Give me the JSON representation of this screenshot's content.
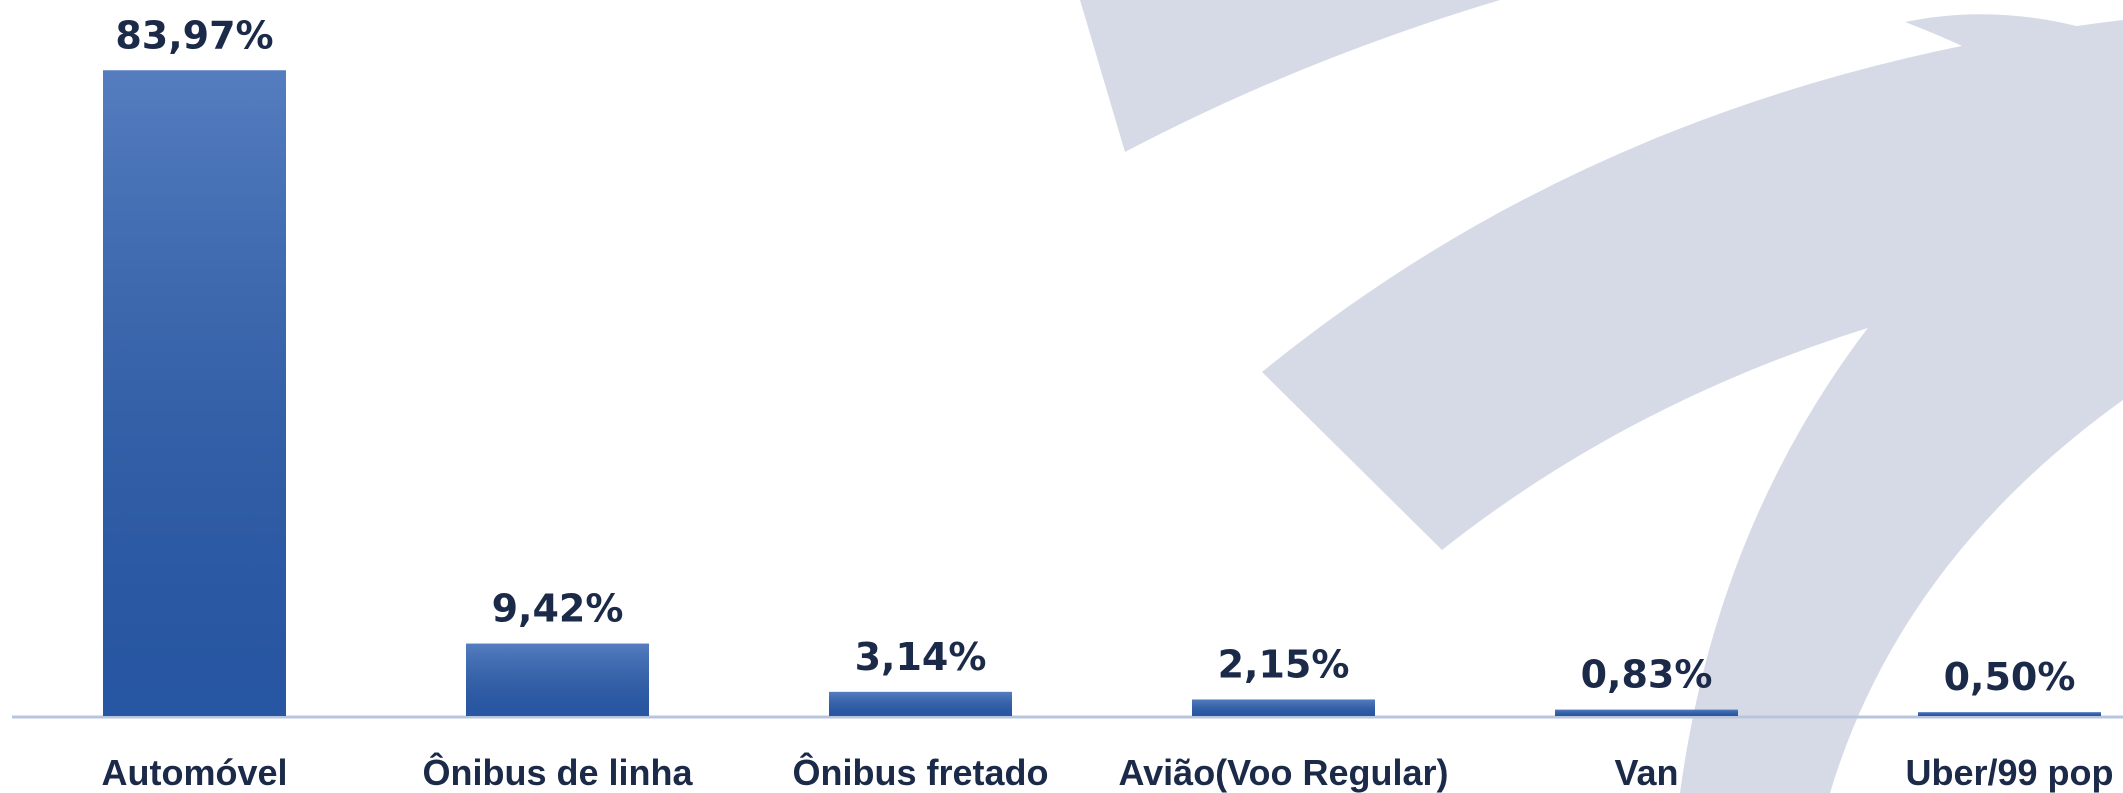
{
  "chart_data": {
    "type": "bar",
    "categories": [
      "Automóvel",
      "Ônibus de linha",
      "Ônibus fretado",
      "Avião(Voo Regular)",
      "Van",
      "Uber/99 pop"
    ],
    "values": [
      83.97,
      9.42,
      3.14,
      2.15,
      0.83,
      0.5
    ],
    "value_labels": [
      "83,97%",
      "9,42%",
      "3,14%",
      "2,15%",
      "0,83%",
      "0,50%"
    ],
    "color": "#2a5db0"
  }
}
